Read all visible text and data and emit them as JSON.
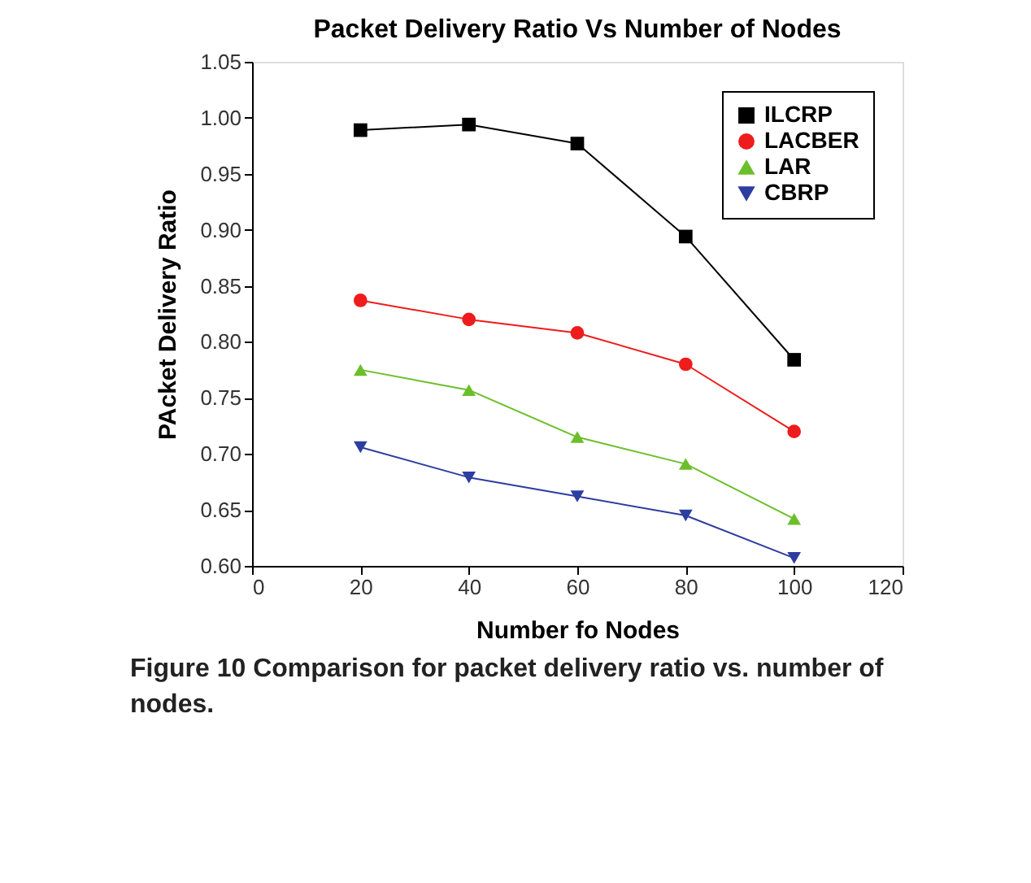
{
  "chart_data": {
    "type": "line",
    "title": "Packet Delivery Ratio Vs Number of Nodes",
    "xlabel": "Number fo Nodes",
    "ylabel": "PAcket Delivery Ratio",
    "annotations": [
      "Figure 10 Comparison for packet delivery ratio vs. number of nodes."
    ],
    "x": [
      20,
      40,
      60,
      80,
      100
    ],
    "series": [
      {
        "name": "ILCRP",
        "color": "#000000",
        "marker": "square",
        "values": [
          0.989,
          0.994,
          0.977,
          0.894,
          0.784
        ]
      },
      {
        "name": "LACBER",
        "color": "#ee1c1c",
        "marker": "circle",
        "values": [
          0.837,
          0.82,
          0.808,
          0.78,
          0.72
        ]
      },
      {
        "name": "LAR",
        "color": "#6cbf2a",
        "marker": "triangle",
        "values": [
          0.775,
          0.757,
          0.715,
          0.691,
          0.642
        ]
      },
      {
        "name": "CBRP",
        "color": "#2e3da0",
        "marker": "triangle-down",
        "values": [
          0.706,
          0.679,
          0.662,
          0.645,
          0.607
        ]
      }
    ],
    "xlim": [
      0,
      120
    ],
    "xticks": [
      0,
      20,
      40,
      60,
      80,
      100,
      120
    ],
    "ylim": [
      0.6,
      1.05
    ],
    "yticks": [
      {
        "value": 0.6,
        "label": "0.60"
      },
      {
        "value": 0.65,
        "label": "0.65"
      },
      {
        "value": 0.7,
        "label": "0.70"
      },
      {
        "value": 0.75,
        "label": "0.75"
      },
      {
        "value": 0.8,
        "label": "0.80"
      },
      {
        "value": 0.85,
        "label": "0.85"
      },
      {
        "value": 0.9,
        "label": "0.90"
      },
      {
        "value": 0.95,
        "label": "0.95"
      },
      {
        "value": 1.0,
        "label": "1.00"
      },
      {
        "value": 1.05,
        "label": "1.05"
      }
    ],
    "grid": false,
    "legend": "top right",
    "line_style": "solid"
  }
}
